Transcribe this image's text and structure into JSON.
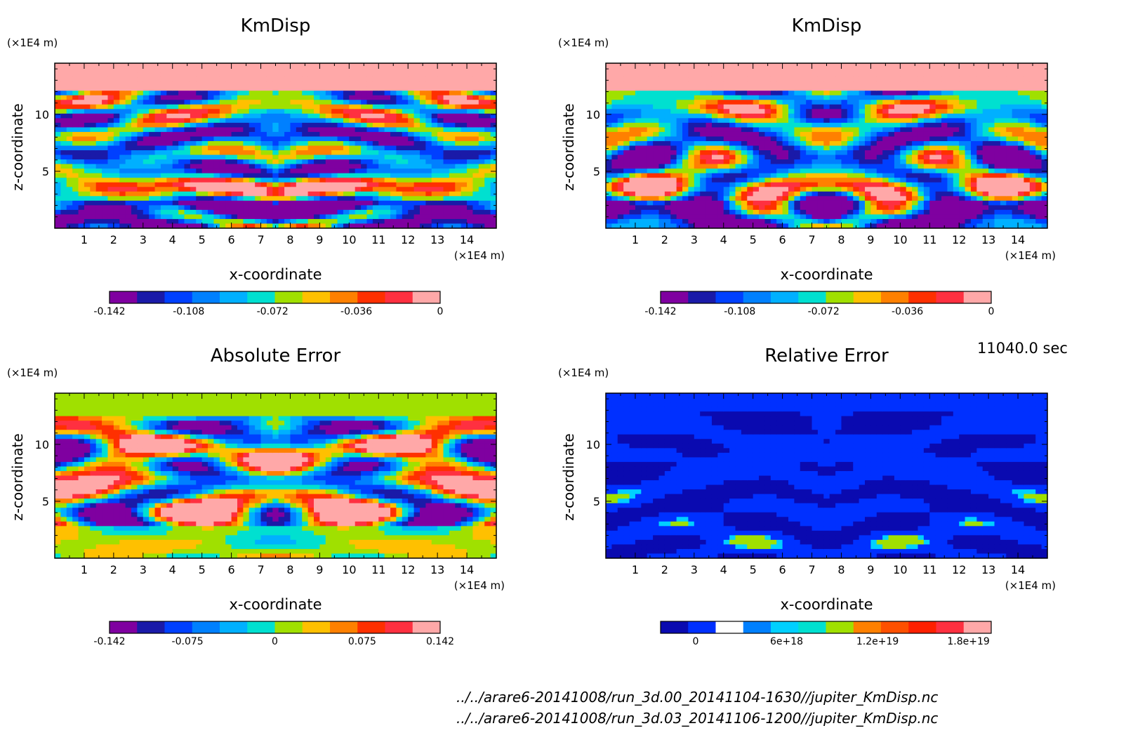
{
  "chart_data": [
    {
      "type": "heatmap",
      "title": "KmDisp",
      "xlabel": "x-coordinate",
      "ylabel": "z-coordinate",
      "x_unit": "(×1E4 m)",
      "y_unit": "(×1E4 m)",
      "xlim": [
        0,
        15
      ],
      "ylim": [
        0,
        14.5
      ],
      "x_ticks": [
        "1",
        "2",
        "3",
        "4",
        "5",
        "6",
        "7",
        "8",
        "9",
        "10",
        "11",
        "12",
        "13",
        "14"
      ],
      "y_ticks": [
        "5",
        "10"
      ],
      "colorbar": {
        "levels": 12,
        "colors": [
          "#7f00a0",
          "#1a1aa8",
          "#0040ff",
          "#0080ff",
          "#00b0ff",
          "#00e0d0",
          "#a0e000",
          "#ffc000",
          "#ff8000",
          "#ff3000",
          "#ff3040",
          "#ffa8a8"
        ],
        "tick_labels": [
          "-0.142",
          "-0.108",
          "-0.072",
          "-0.036",
          "0"
        ],
        "tick_values": [
          -0.142,
          -0.108,
          -0.072,
          -0.036,
          0
        ]
      }
    },
    {
      "type": "heatmap",
      "title": "KmDisp",
      "xlabel": "x-coordinate",
      "ylabel": "z-coordinate",
      "x_unit": "(×1E4 m)",
      "y_unit": "(×1E4 m)",
      "xlim": [
        0,
        15
      ],
      "ylim": [
        0,
        14.5
      ],
      "x_ticks": [
        "1",
        "2",
        "3",
        "4",
        "5",
        "6",
        "7",
        "8",
        "9",
        "10",
        "11",
        "12",
        "13",
        "14"
      ],
      "y_ticks": [
        "5",
        "10"
      ],
      "colorbar": {
        "levels": 12,
        "colors": [
          "#7f00a0",
          "#1a1aa8",
          "#0040ff",
          "#0080ff",
          "#00b0ff",
          "#00e0d0",
          "#a0e000",
          "#ffc000",
          "#ff8000",
          "#ff3000",
          "#ff3040",
          "#ffa8a8"
        ],
        "tick_labels": [
          "-0.142",
          "-0.108",
          "-0.072",
          "-0.036",
          "0"
        ],
        "tick_values": [
          -0.142,
          -0.108,
          -0.072,
          -0.036,
          0
        ]
      }
    },
    {
      "type": "heatmap",
      "title": "Absolute Error",
      "xlabel": "x-coordinate",
      "ylabel": "z-coordinate",
      "x_unit": "(×1E4 m)",
      "y_unit": "(×1E4 m)",
      "xlim": [
        0,
        15
      ],
      "ylim": [
        0,
        14.5
      ],
      "x_ticks": [
        "1",
        "2",
        "3",
        "4",
        "5",
        "6",
        "7",
        "8",
        "9",
        "10",
        "11",
        "12",
        "13",
        "14"
      ],
      "y_ticks": [
        "5",
        "10"
      ],
      "colorbar": {
        "levels": 12,
        "colors": [
          "#7f00a0",
          "#1a1aa8",
          "#0040ff",
          "#0080ff",
          "#00b0ff",
          "#00e0d0",
          "#a0e000",
          "#ffc000",
          "#ff8000",
          "#ff3000",
          "#ff3040",
          "#ffa8a8"
        ],
        "tick_labels": [
          "-0.142",
          "-0.075",
          "0",
          "0.075",
          "0.142"
        ],
        "tick_values": [
          -0.142,
          -0.075,
          0,
          0.075,
          0.142
        ]
      }
    },
    {
      "type": "heatmap",
      "title": "Relative Error",
      "xlabel": "x-coordinate",
      "ylabel": "z-coordinate",
      "x_unit": "(×1E4 m)",
      "y_unit": "(×1E4 m)",
      "xlim": [
        0,
        15
      ],
      "ylim": [
        0,
        14.5
      ],
      "x_ticks": [
        "1",
        "2",
        "3",
        "4",
        "5",
        "6",
        "7",
        "8",
        "9",
        "10",
        "11",
        "12",
        "13",
        "14"
      ],
      "y_ticks": [
        "5",
        "10"
      ],
      "colorbar": {
        "levels": 12,
        "colors": [
          "#0a0ab0",
          "#0030ff",
          "#ffffff",
          "#0080ff",
          "#00d0ff",
          "#00e0d0",
          "#a0e000",
          "#ff8000",
          "#ff5000",
          "#ff2000",
          "#ff3040",
          "#ffa8a8"
        ],
        "tick_labels": [
          "0",
          "6e+18",
          "1.2e+19",
          "1.8e+19"
        ],
        "tick_values": [
          0,
          6e+18,
          1.2e+19,
          1.8e+19
        ]
      }
    }
  ],
  "time_label": "11040.0 sec",
  "file_paths": [
    "../../arare6-20141008/run_3d.00_20141104-1630//jupiter_KmDisp.nc",
    "../../arare6-20141008/run_3d.03_20141106-1200//jupiter_KmDisp.nc"
  ]
}
